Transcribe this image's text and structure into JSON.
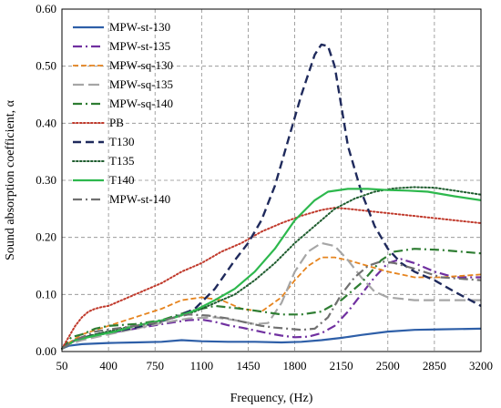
{
  "chart_data": {
    "type": "line",
    "xlabel": "Frequency, (Hz)",
    "ylabel": "Sound absorption coefficient, α",
    "xlim": [
      50,
      3200
    ],
    "ylim": [
      0,
      0.6
    ],
    "xticks": [
      50,
      400,
      750,
      1100,
      1450,
      1800,
      2150,
      2500,
      2850,
      3200
    ],
    "yticks": [
      0.0,
      0.1,
      0.2,
      0.3,
      0.4,
      0.5,
      0.6
    ],
    "ytick_labels": [
      "0.00",
      "0.10",
      "0.20",
      "0.30",
      "0.40",
      "0.50",
      "0.60"
    ],
    "grid": true,
    "legend_position": "top-left",
    "series": [
      {
        "name": "MPW-st-130",
        "color": "#2e5fa8",
        "dash": "solid",
        "points": [
          [
            50,
            0.005
          ],
          [
            100,
            0.01
          ],
          [
            200,
            0.013
          ],
          [
            400,
            0.015
          ],
          [
            600,
            0.016
          ],
          [
            800,
            0.017
          ],
          [
            950,
            0.02
          ],
          [
            1100,
            0.018
          ],
          [
            1300,
            0.017
          ],
          [
            1500,
            0.017
          ],
          [
            1700,
            0.016
          ],
          [
            1850,
            0.017
          ],
          [
            2000,
            0.02
          ],
          [
            2150,
            0.024
          ],
          [
            2300,
            0.029
          ],
          [
            2500,
            0.035
          ],
          [
            2700,
            0.038
          ],
          [
            2900,
            0.039
          ],
          [
            3200,
            0.04
          ]
        ]
      },
      {
        "name": "MPW-st-135",
        "color": "#7030a0",
        "dash": "dashdot",
        "points": [
          [
            50,
            0.005
          ],
          [
            100,
            0.015
          ],
          [
            200,
            0.025
          ],
          [
            400,
            0.032
          ],
          [
            600,
            0.04
          ],
          [
            800,
            0.048
          ],
          [
            1000,
            0.055
          ],
          [
            1100,
            0.056
          ],
          [
            1200,
            0.052
          ],
          [
            1300,
            0.046
          ],
          [
            1400,
            0.042
          ],
          [
            1500,
            0.037
          ],
          [
            1600,
            0.032
          ],
          [
            1700,
            0.028
          ],
          [
            1800,
            0.025
          ],
          [
            1900,
            0.026
          ],
          [
            2000,
            0.032
          ],
          [
            2100,
            0.045
          ],
          [
            2200,
            0.07
          ],
          [
            2300,
            0.1
          ],
          [
            2400,
            0.13
          ],
          [
            2500,
            0.155
          ],
          [
            2600,
            0.162
          ],
          [
            2700,
            0.155
          ],
          [
            2850,
            0.14
          ],
          [
            3000,
            0.13
          ],
          [
            3200,
            0.13
          ]
        ]
      },
      {
        "name": "MPW-sq-130",
        "color": "#e6841e",
        "dash": "dash",
        "points": [
          [
            50,
            0.005
          ],
          [
            100,
            0.015
          ],
          [
            200,
            0.03
          ],
          [
            400,
            0.045
          ],
          [
            600,
            0.06
          ],
          [
            800,
            0.075
          ],
          [
            950,
            0.09
          ],
          [
            1100,
            0.095
          ],
          [
            1250,
            0.09
          ],
          [
            1400,
            0.075
          ],
          [
            1550,
            0.07
          ],
          [
            1700,
            0.095
          ],
          [
            1800,
            0.125
          ],
          [
            1900,
            0.15
          ],
          [
            2000,
            0.165
          ],
          [
            2100,
            0.165
          ],
          [
            2200,
            0.16
          ],
          [
            2350,
            0.15
          ],
          [
            2500,
            0.14
          ],
          [
            2700,
            0.13
          ],
          [
            2900,
            0.13
          ],
          [
            3200,
            0.135
          ]
        ]
      },
      {
        "name": "MPW-sq-135",
        "color": "#a6a6a6",
        "dash": "longdash",
        "points": [
          [
            50,
            0.005
          ],
          [
            100,
            0.012
          ],
          [
            200,
            0.02
          ],
          [
            400,
            0.03
          ],
          [
            600,
            0.04
          ],
          [
            800,
            0.05
          ],
          [
            1000,
            0.058
          ],
          [
            1200,
            0.06
          ],
          [
            1350,
            0.055
          ],
          [
            1500,
            0.048
          ],
          [
            1600,
            0.05
          ],
          [
            1700,
            0.085
          ],
          [
            1800,
            0.14
          ],
          [
            1900,
            0.175
          ],
          [
            2000,
            0.19
          ],
          [
            2100,
            0.185
          ],
          [
            2200,
            0.16
          ],
          [
            2300,
            0.13
          ],
          [
            2400,
            0.105
          ],
          [
            2500,
            0.095
          ],
          [
            2700,
            0.09
          ],
          [
            2900,
            0.09
          ],
          [
            3200,
            0.09
          ]
        ]
      },
      {
        "name": "MPW-sq-140",
        "color": "#2e7d32",
        "dash": "dashdot",
        "points": [
          [
            50,
            0.005
          ],
          [
            120,
            0.025
          ],
          [
            200,
            0.03
          ],
          [
            300,
            0.04
          ],
          [
            400,
            0.045
          ],
          [
            600,
            0.048
          ],
          [
            800,
            0.055
          ],
          [
            1000,
            0.07
          ],
          [
            1200,
            0.08
          ],
          [
            1400,
            0.075
          ],
          [
            1550,
            0.07
          ],
          [
            1700,
            0.065
          ],
          [
            1850,
            0.065
          ],
          [
            2000,
            0.07
          ],
          [
            2150,
            0.09
          ],
          [
            2300,
            0.12
          ],
          [
            2450,
            0.16
          ],
          [
            2550,
            0.175
          ],
          [
            2700,
            0.18
          ],
          [
            2900,
            0.178
          ],
          [
            3200,
            0.172
          ]
        ]
      },
      {
        "name": "PB",
        "color": "#c0392b",
        "dash": "dot",
        "points": [
          [
            50,
            0.005
          ],
          [
            100,
            0.025
          ],
          [
            150,
            0.045
          ],
          [
            200,
            0.06
          ],
          [
            250,
            0.07
          ],
          [
            300,
            0.075
          ],
          [
            350,
            0.078
          ],
          [
            400,
            0.08
          ],
          [
            500,
            0.09
          ],
          [
            650,
            0.105
          ],
          [
            800,
            0.12
          ],
          [
            950,
            0.14
          ],
          [
            1100,
            0.155
          ],
          [
            1250,
            0.175
          ],
          [
            1400,
            0.19
          ],
          [
            1550,
            0.21
          ],
          [
            1700,
            0.225
          ],
          [
            1850,
            0.238
          ],
          [
            2000,
            0.248
          ],
          [
            2100,
            0.252
          ],
          [
            2200,
            0.25
          ],
          [
            2400,
            0.245
          ],
          [
            2600,
            0.24
          ],
          [
            2800,
            0.235
          ],
          [
            3000,
            0.23
          ],
          [
            3200,
            0.225
          ]
        ]
      },
      {
        "name": "T130",
        "color": "#1f2a5c",
        "dash": "bigdash",
        "points": [
          [
            50,
            0.005
          ],
          [
            150,
            0.02
          ],
          [
            300,
            0.03
          ],
          [
            450,
            0.035
          ],
          [
            600,
            0.042
          ],
          [
            750,
            0.05
          ],
          [
            900,
            0.06
          ],
          [
            1050,
            0.075
          ],
          [
            1200,
            0.11
          ],
          [
            1350,
            0.16
          ],
          [
            1450,
            0.19
          ],
          [
            1550,
            0.23
          ],
          [
            1650,
            0.29
          ],
          [
            1750,
            0.37
          ],
          [
            1850,
            0.45
          ],
          [
            1950,
            0.52
          ],
          [
            2000,
            0.538
          ],
          [
            2050,
            0.535
          ],
          [
            2100,
            0.5
          ],
          [
            2150,
            0.43
          ],
          [
            2200,
            0.36
          ],
          [
            2300,
            0.28
          ],
          [
            2400,
            0.22
          ],
          [
            2500,
            0.18
          ],
          [
            2600,
            0.155
          ],
          [
            2700,
            0.14
          ],
          [
            2850,
            0.125
          ],
          [
            3000,
            0.105
          ],
          [
            3200,
            0.08
          ]
        ]
      },
      {
        "name": "T135",
        "color": "#1e5c2e",
        "dash": "dot",
        "points": [
          [
            50,
            0.005
          ],
          [
            150,
            0.02
          ],
          [
            300,
            0.03
          ],
          [
            450,
            0.038
          ],
          [
            600,
            0.045
          ],
          [
            750,
            0.052
          ],
          [
            900,
            0.06
          ],
          [
            1050,
            0.07
          ],
          [
            1200,
            0.085
          ],
          [
            1350,
            0.1
          ],
          [
            1500,
            0.125
          ],
          [
            1650,
            0.155
          ],
          [
            1800,
            0.19
          ],
          [
            1950,
            0.22
          ],
          [
            2100,
            0.25
          ],
          [
            2250,
            0.268
          ],
          [
            2400,
            0.28
          ],
          [
            2550,
            0.286
          ],
          [
            2700,
            0.288
          ],
          [
            2850,
            0.287
          ],
          [
            3000,
            0.282
          ],
          [
            3200,
            0.275
          ]
        ]
      },
      {
        "name": "T140",
        "color": "#2db84d",
        "dash": "solid",
        "points": [
          [
            50,
            0.005
          ],
          [
            150,
            0.02
          ],
          [
            300,
            0.028
          ],
          [
            450,
            0.035
          ],
          [
            600,
            0.045
          ],
          [
            750,
            0.052
          ],
          [
            900,
            0.06
          ],
          [
            1050,
            0.072
          ],
          [
            1200,
            0.09
          ],
          [
            1350,
            0.11
          ],
          [
            1500,
            0.14
          ],
          [
            1650,
            0.18
          ],
          [
            1800,
            0.23
          ],
          [
            1950,
            0.265
          ],
          [
            2050,
            0.28
          ],
          [
            2200,
            0.285
          ],
          [
            2350,
            0.285
          ],
          [
            2500,
            0.283
          ],
          [
            2650,
            0.282
          ],
          [
            2800,
            0.28
          ],
          [
            3000,
            0.272
          ],
          [
            3200,
            0.265
          ]
        ]
      },
      {
        "name": "MPW-st-140",
        "color": "#707070",
        "dash": "dashdot",
        "points": [
          [
            50,
            0.005
          ],
          [
            150,
            0.02
          ],
          [
            300,
            0.035
          ],
          [
            450,
            0.04
          ],
          [
            600,
            0.045
          ],
          [
            750,
            0.05
          ],
          [
            900,
            0.06
          ],
          [
            1000,
            0.065
          ],
          [
            1150,
            0.063
          ],
          [
            1300,
            0.058
          ],
          [
            1450,
            0.05
          ],
          [
            1550,
            0.045
          ],
          [
            1650,
            0.042
          ],
          [
            1750,
            0.04
          ],
          [
            1850,
            0.038
          ],
          [
            1950,
            0.04
          ],
          [
            2050,
            0.06
          ],
          [
            2150,
            0.1
          ],
          [
            2250,
            0.13
          ],
          [
            2350,
            0.15
          ],
          [
            2450,
            0.158
          ],
          [
            2550,
            0.155
          ],
          [
            2700,
            0.145
          ],
          [
            2900,
            0.13
          ],
          [
            3200,
            0.125
          ]
        ]
      }
    ]
  }
}
